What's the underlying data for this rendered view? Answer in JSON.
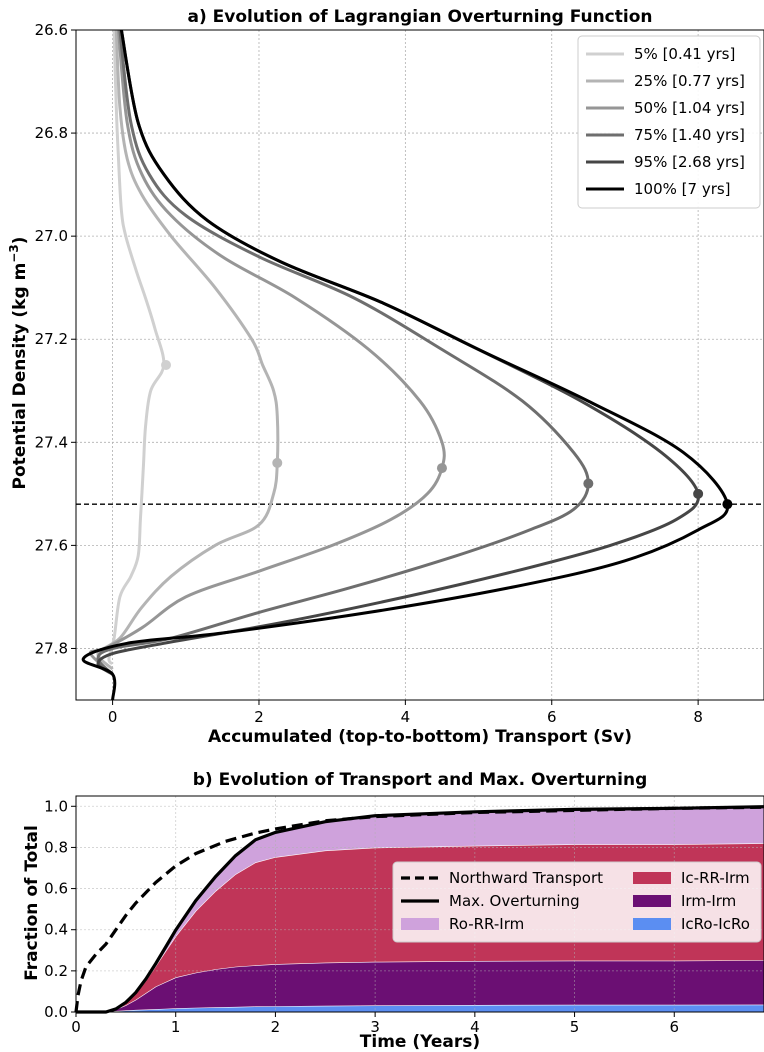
{
  "chart_data": [
    {
      "type": "line",
      "title": "a) Evolution of Lagrangian Overturning Function",
      "xlabel": "Accumulated (top-to-bottom) Transport (Sv)",
      "ylabel": "Potential Density (kg m⁻³)",
      "xlim": [
        -0.5,
        8.9
      ],
      "ylim": [
        27.9,
        26.6
      ],
      "y_inverted": true,
      "xticks": [
        0,
        2,
        4,
        6,
        8
      ],
      "yticks": [
        26.6,
        26.8,
        27.0,
        27.2,
        27.4,
        27.6,
        27.8
      ],
      "xtick_labels": [
        "0",
        "2",
        "4",
        "6",
        "8"
      ],
      "ytick_labels": [
        "26.6",
        "26.8",
        "27.0",
        "27.2",
        "27.4",
        "27.6",
        "27.8"
      ],
      "grid": true,
      "legend_position": "top-right",
      "hline": 27.52,
      "series": [
        {
          "name": "5% [0.41 yrs]",
          "color": "#d0d0d0",
          "points": [
            [
              0.02,
              26.6
            ],
            [
              0.05,
              26.75
            ],
            [
              0.08,
              26.85
            ],
            [
              0.12,
              26.95
            ],
            [
              0.18,
              27.0
            ],
            [
              0.33,
              27.07
            ],
            [
              0.45,
              27.12
            ],
            [
              0.58,
              27.18
            ],
            [
              0.7,
              27.25
            ],
            [
              0.52,
              27.3
            ],
            [
              0.45,
              27.37
            ],
            [
              0.42,
              27.45
            ],
            [
              0.38,
              27.55
            ],
            [
              0.35,
              27.62
            ],
            [
              0.25,
              27.66
            ],
            [
              0.1,
              27.7
            ],
            [
              0.02,
              27.78
            ],
            [
              -0.05,
              27.82
            ],
            [
              0.0,
              27.83
            ]
          ],
          "max": [
            0.73,
            27.25
          ]
        },
        {
          "name": "25% [0.77 yrs]",
          "color": "#b4b4b4",
          "points": [
            [
              0.05,
              26.6
            ],
            [
              0.1,
              26.75
            ],
            [
              0.2,
              26.85
            ],
            [
              0.4,
              26.92
            ],
            [
              0.8,
              27.0
            ],
            [
              1.4,
              27.1
            ],
            [
              1.9,
              27.2
            ],
            [
              2.05,
              27.25
            ],
            [
              2.2,
              27.3
            ],
            [
              2.25,
              27.35
            ],
            [
              2.25,
              27.44
            ],
            [
              2.2,
              27.5
            ],
            [
              2.0,
              27.56
            ],
            [
              1.4,
              27.6
            ],
            [
              0.8,
              27.66
            ],
            [
              0.4,
              27.72
            ],
            [
              0.1,
              27.78
            ],
            [
              -0.2,
              27.81
            ],
            [
              0.0,
              27.84
            ]
          ],
          "max": [
            2.25,
            27.44
          ]
        },
        {
          "name": "50% [1.04 yrs]",
          "color": "#969696",
          "points": [
            [
              0.08,
              26.6
            ],
            [
              0.2,
              26.78
            ],
            [
              0.4,
              26.88
            ],
            [
              0.8,
              26.96
            ],
            [
              1.5,
              27.04
            ],
            [
              2.5,
              27.12
            ],
            [
              3.5,
              27.22
            ],
            [
              4.2,
              27.32
            ],
            [
              4.5,
              27.4
            ],
            [
              4.5,
              27.45
            ],
            [
              4.3,
              27.5
            ],
            [
              3.8,
              27.55
            ],
            [
              3.0,
              27.6
            ],
            [
              2.0,
              27.65
            ],
            [
              1.0,
              27.7
            ],
            [
              0.4,
              27.76
            ],
            [
              -0.1,
              27.8
            ],
            [
              -0.3,
              27.81
            ],
            [
              0.0,
              27.85
            ]
          ],
          "max": [
            4.5,
            27.45
          ]
        },
        {
          "name": "75% [1.40 yrs]",
          "color": "#6e6e6e",
          "points": [
            [
              0.1,
              26.6
            ],
            [
              0.25,
              26.78
            ],
            [
              0.5,
              26.88
            ],
            [
              1.0,
              26.96
            ],
            [
              2.0,
              27.04
            ],
            [
              3.3,
              27.12
            ],
            [
              4.5,
              27.22
            ],
            [
              5.6,
              27.32
            ],
            [
              6.3,
              27.42
            ],
            [
              6.5,
              27.48
            ],
            [
              6.3,
              27.53
            ],
            [
              5.7,
              27.57
            ],
            [
              4.7,
              27.62
            ],
            [
              3.3,
              27.68
            ],
            [
              2.0,
              27.73
            ],
            [
              0.8,
              27.78
            ],
            [
              0.0,
              27.8
            ],
            [
              -0.2,
              27.82
            ],
            [
              0.0,
              27.85
            ]
          ],
          "max": [
            6.5,
            27.48
          ]
        },
        {
          "name": "95% [2.68 yrs]",
          "color": "#464646",
          "points": [
            [
              0.12,
              26.6
            ],
            [
              0.35,
              26.78
            ],
            [
              0.7,
              26.88
            ],
            [
              1.3,
              26.97
            ],
            [
              2.3,
              27.05
            ],
            [
              3.7,
              27.13
            ],
            [
              5.0,
              27.22
            ],
            [
              6.4,
              27.32
            ],
            [
              7.5,
              27.42
            ],
            [
              8.0,
              27.5
            ],
            [
              7.7,
              27.55
            ],
            [
              6.8,
              27.6
            ],
            [
              5.5,
              27.65
            ],
            [
              4.0,
              27.7
            ],
            [
              2.3,
              27.75
            ],
            [
              0.7,
              27.79
            ],
            [
              0.0,
              27.81
            ],
            [
              -0.2,
              27.83
            ],
            [
              0.0,
              27.85
            ]
          ],
          "max": [
            8.0,
            27.5
          ]
        },
        {
          "name": "100% [7 yrs]",
          "color": "#000000",
          "points": [
            [
              0.12,
              26.6
            ],
            [
              0.35,
              26.78
            ],
            [
              0.7,
              26.88
            ],
            [
              1.3,
              26.97
            ],
            [
              2.3,
              27.05
            ],
            [
              3.7,
              27.13
            ],
            [
              5.0,
              27.22
            ],
            [
              6.5,
              27.32
            ],
            [
              7.8,
              27.42
            ],
            [
              8.4,
              27.52
            ],
            [
              8.0,
              27.57
            ],
            [
              7.0,
              27.63
            ],
            [
              5.5,
              27.68
            ],
            [
              3.5,
              27.73
            ],
            [
              1.5,
              27.77
            ],
            [
              0.2,
              27.79
            ],
            [
              -0.4,
              27.82
            ],
            [
              0.0,
              27.85
            ],
            [
              0.0,
              27.9
            ]
          ],
          "max": [
            8.4,
            27.52
          ]
        }
      ]
    },
    {
      "type": "area",
      "title": "b) Evolution of Transport and Max. Overturning",
      "xlabel": "Time (Years)",
      "ylabel": "Fraction of Total",
      "xlim": [
        0,
        6.9
      ],
      "ylim": [
        0,
        1.05
      ],
      "xticks": [
        0,
        1,
        2,
        3,
        4,
        5,
        6
      ],
      "yticks": [
        0.0,
        0.2,
        0.4,
        0.6,
        0.8,
        1.0
      ],
      "xtick_labels": [
        "0",
        "1",
        "2",
        "3",
        "4",
        "5",
        "6"
      ],
      "ytick_labels": [
        "0.0",
        "0.2",
        "0.4",
        "0.6",
        "0.8",
        "1.0"
      ],
      "grid": true,
      "legend_position": "center-right",
      "legend": [
        {
          "name": "Northward Transport",
          "style": "dashed",
          "color": "#000000"
        },
        {
          "name": "Ic-RR-Irm",
          "style": "patch",
          "color": "#c03558"
        },
        {
          "name": "Max. Overturning",
          "style": "solid",
          "color": "#000000"
        },
        {
          "name": "Irm-Irm",
          "style": "patch",
          "color": "#6b0f73"
        },
        {
          "name": "Ro-RR-Irm",
          "style": "patch",
          "color": "#cfa2dc"
        },
        {
          "name": "IcRo-IcRo",
          "style": "patch",
          "color": "#5b8ef2"
        }
      ],
      "stacks": {
        "x": [
          0,
          0.3,
          0.4,
          0.5,
          0.6,
          0.7,
          0.8,
          0.9,
          1.0,
          1.2,
          1.4,
          1.6,
          1.8,
          2.0,
          2.5,
          3.0,
          4.0,
          5.0,
          6.0,
          6.9
        ],
        "IcRo-IcRo": [
          0,
          0,
          0.005,
          0.008,
          0.01,
          0.012,
          0.014,
          0.016,
          0.018,
          0.021,
          0.023,
          0.025,
          0.027,
          0.028,
          0.03,
          0.032,
          0.034,
          0.035,
          0.035,
          0.036
        ],
        "Irm-Irm": [
          0,
          0,
          0.008,
          0.025,
          0.05,
          0.08,
          0.11,
          0.13,
          0.15,
          0.17,
          0.185,
          0.195,
          0.2,
          0.205,
          0.21,
          0.212,
          0.214,
          0.215,
          0.215,
          0.216
        ],
        "Ic-RR-Irm": [
          0,
          0,
          0.002,
          0.012,
          0.03,
          0.06,
          0.1,
          0.15,
          0.2,
          0.3,
          0.38,
          0.45,
          0.5,
          0.52,
          0.545,
          0.555,
          0.56,
          0.565,
          0.565,
          0.568
        ],
        "Ro-RR-Irm": [
          0,
          0,
          0,
          0.002,
          0.005,
          0.008,
          0.012,
          0.02,
          0.03,
          0.05,
          0.07,
          0.09,
          0.11,
          0.12,
          0.14,
          0.155,
          0.165,
          0.17,
          0.175,
          0.178
        ]
      },
      "northward_transport": {
        "x": [
          0,
          0.02,
          0.05,
          0.1,
          0.2,
          0.3,
          0.4,
          0.5,
          0.6,
          0.8,
          1.0,
          1.2,
          1.5,
          1.8,
          2.0,
          2.5,
          3.0,
          4.0,
          5.0,
          6.0,
          6.9
        ],
        "y": [
          0,
          0.08,
          0.15,
          0.22,
          0.28,
          0.33,
          0.4,
          0.47,
          0.53,
          0.63,
          0.71,
          0.77,
          0.83,
          0.87,
          0.89,
          0.93,
          0.95,
          0.97,
          0.98,
          0.99,
          0.995
        ]
      },
      "max_overturning": {
        "x": [
          0,
          0.3,
          0.4,
          0.5,
          0.6,
          0.7,
          0.8,
          0.9,
          1.0,
          1.2,
          1.4,
          1.6,
          1.8,
          2.0,
          2.5,
          3.0,
          4.0,
          5.0,
          6.0,
          6.9
        ],
        "y": [
          0,
          0,
          0.015,
          0.047,
          0.095,
          0.16,
          0.236,
          0.316,
          0.398,
          0.541,
          0.658,
          0.76,
          0.837,
          0.873,
          0.925,
          0.954,
          0.973,
          0.985,
          0.99,
          0.998
        ]
      }
    }
  ]
}
